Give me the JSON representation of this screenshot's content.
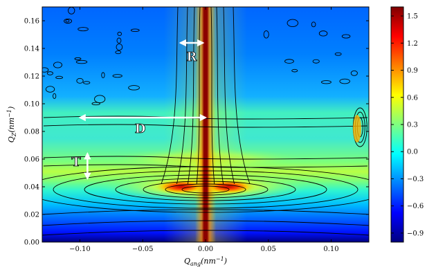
{
  "chart_data": {
    "type": "heatmap",
    "xlabel": "Q_ang(nm^-1)",
    "ylabel": "Q_Z(nm^-1)",
    "xlabel_parts": {
      "main": "Q",
      "sub": "ang",
      "open": "(nm",
      "sup": "−1",
      "close": ")"
    },
    "ylabel_parts": {
      "main": "Q",
      "sub": "Z",
      "open": "(nm",
      "sup": "−1",
      "close": ")"
    },
    "xlim": [
      -0.13,
      0.13
    ],
    "ylim": [
      0.0,
      0.17
    ],
    "x_ticks": [
      -0.1,
      -0.05,
      0.0,
      0.05,
      0.1
    ],
    "x_tick_labels": [
      "−0.10",
      "−0.05",
      "0.00",
      "0.05",
      "0.10"
    ],
    "y_ticks": [
      0.0,
      0.02,
      0.04,
      0.06,
      0.08,
      0.1,
      0.12,
      0.14,
      0.16
    ],
    "y_tick_labels": [
      "0.00",
      "0.02",
      "0.04",
      "0.06",
      "0.08",
      "0.10",
      "0.12",
      "0.14",
      "0.16"
    ],
    "colorbar": {
      "range": [
        -1.0,
        1.6
      ],
      "ticks": [
        -0.9,
        -0.6,
        -0.3,
        0.0,
        0.3,
        0.6,
        0.9,
        1.2,
        1.5
      ],
      "tick_labels": [
        "−0.9",
        "−0.6",
        "−0.3",
        "0.0",
        "0.3",
        "0.6",
        "0.9",
        "1.2",
        "1.5"
      ],
      "colormap": "jet"
    },
    "contour_lines": true,
    "features": {
      "specular_rod": {
        "q_ang": 0.0,
        "width": 0.004
      },
      "peak_band": {
        "q_z": 0.038
      },
      "second_band": {
        "q_z": 0.058
      },
      "third_band": {
        "q_z": 0.087
      },
      "side_spot": {
        "q_ang": 0.123,
        "q_z": 0.083
      }
    },
    "annotations": [
      {
        "label": "R",
        "kind": "double-arrow",
        "from": [
          -0.02,
          0.144
        ],
        "to": [
          -0.002,
          0.144
        ],
        "text_at": [
          -0.011,
          0.134
        ]
      },
      {
        "label": "D",
        "kind": "double-arrow",
        "from": [
          -0.1,
          0.09
        ],
        "to": [
          0.0,
          0.09
        ],
        "text_at": [
          -0.052,
          0.082
        ]
      },
      {
        "label": "T",
        "kind": "double-arrow",
        "from": [
          -0.094,
          0.064
        ],
        "to": [
          -0.094,
          0.046
        ],
        "text_at": [
          -0.103,
          0.058
        ]
      }
    ]
  }
}
